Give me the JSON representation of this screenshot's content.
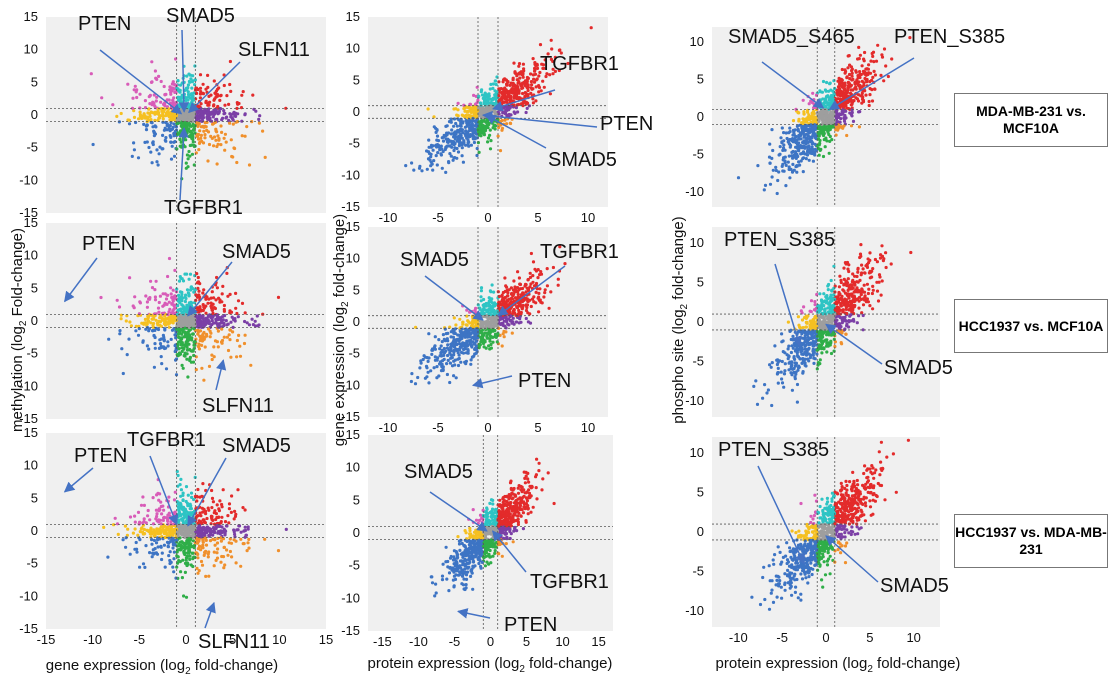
{
  "colors": {
    "background": "#f0f0f0",
    "grid": "#dcdcdc",
    "guide": "#555555",
    "arrow": "#4472c4",
    "up_up": "#e32b2b",
    "up_mid": "#2ec4c4",
    "up_down": "#d85cb8",
    "mid_up": "#7b3fa6",
    "mid_mid": "#9e9e9e",
    "mid_down": "#f5c021",
    "down_up": "#f0902c",
    "down_mid": "#2fae48",
    "down_down": "#3d74c4"
  },
  "comparisons": [
    "MDA-MB-231 vs. MCF10A",
    "HCC1937 vs. MCF10A",
    "HCC1937 vs. MDA-MB-231"
  ],
  "columns": [
    {
      "id": "methylation_vs_gene_expression",
      "xlabel": "gene expression (log2 fold-change)",
      "ylabel": "methylation (log2 Fold-change)",
      "xticks": [
        "-15",
        "-10",
        "-5",
        "0",
        "5",
        "10",
        "15"
      ],
      "yticks": [
        "-15",
        "-10",
        "-5",
        "0",
        "5",
        "10",
        "15"
      ],
      "rows_annotations": [
        [
          "PTEN",
          "SMAD5",
          "SLFN11",
          "TGFBR1"
        ],
        [
          "PTEN",
          "SMAD5",
          "SLFN11"
        ],
        [
          "PTEN",
          "TGFBR1",
          "SMAD5",
          "SLFN11"
        ]
      ]
    },
    {
      "id": "gene_vs_protein_expression",
      "xlabel": "protein expression (log2 fold-change)",
      "ylabel": "gene expression (log2 fold-change)",
      "xticks_rows_1_2": [
        "-10",
        "-5",
        "0",
        "5",
        "10"
      ],
      "xticks_row_3": [
        "-15",
        "-10",
        "-5",
        "0",
        "5",
        "10",
        "15"
      ],
      "yticks": [
        "-15",
        "-10",
        "-5",
        "0",
        "5",
        "10",
        "15"
      ],
      "rows_annotations": [
        [
          "TGFBR1",
          "PTEN",
          "SMAD5"
        ],
        [
          "SMAD5",
          "TGFBR1",
          "PTEN"
        ],
        [
          "SMAD5",
          "TGFBR1",
          "PTEN"
        ]
      ]
    },
    {
      "id": "phosphosite_vs_protein_expression",
      "xlabel": "protein expression (log2 fold-change)",
      "ylabel": "phospho site (log2 fold-change)",
      "xticks": [
        "-10",
        "-5",
        "0",
        "5",
        "10"
      ],
      "yticks": [
        "-10",
        "-5",
        "0",
        "5",
        "10"
      ],
      "rows_annotations": [
        [
          "SMAD5_S465",
          "PTEN_S385"
        ],
        [
          "PTEN_S385",
          "SMAD5"
        ],
        [
          "PTEN_S385",
          "SMAD5"
        ]
      ]
    }
  ],
  "chart_data": [
    {
      "type": "scatter",
      "panel": "col1-row1",
      "comparison": "MDA-MB-231 vs. MCF10A",
      "xlabel": "gene expression (log2 fold-change)",
      "ylabel": "methylation (log2 Fold-change)",
      "xlim": [
        -15,
        15
      ],
      "ylim": [
        -15,
        15
      ],
      "thresholds": [
        -1,
        1
      ],
      "annotations": [
        {
          "label": "PTEN",
          "x": -0.5,
          "y": 0.2
        },
        {
          "label": "SMAD5",
          "x": -0.2,
          "y": 0.5
        },
        {
          "label": "SLFN11",
          "x": 0.3,
          "y": 0.4
        },
        {
          "label": "TGFBR1",
          "x": -0.2,
          "y": -2
        }
      ]
    },
    {
      "type": "scatter",
      "panel": "col1-row2",
      "comparison": "HCC1937 vs. MCF10A",
      "xlabel": "gene expression (log2 fold-change)",
      "ylabel": "methylation (log2 Fold-change)",
      "xlim": [
        -15,
        15
      ],
      "ylim": [
        -15,
        15
      ],
      "thresholds": [
        -1,
        1
      ],
      "annotations": [
        {
          "label": "PTEN",
          "x": -13,
          "y": 3
        },
        {
          "label": "SMAD5",
          "x": 0.2,
          "y": 0.8
        },
        {
          "label": "SLFN11",
          "x": 4,
          "y": -6
        }
      ]
    },
    {
      "type": "scatter",
      "panel": "col1-row3",
      "comparison": "HCC1937 vs. MDA-MB-231",
      "xlabel": "gene expression (log2 fold-change)",
      "ylabel": "methylation (log2 Fold-change)",
      "xlim": [
        -15,
        15
      ],
      "ylim": [
        -15,
        15
      ],
      "thresholds": [
        -1,
        1
      ],
      "annotations": [
        {
          "label": "PTEN",
          "x": -13,
          "y": 6
        },
        {
          "label": "TGFBR1",
          "x": -1,
          "y": 1
        },
        {
          "label": "SMAD5",
          "x": 0.2,
          "y": 0.8
        },
        {
          "label": "SLFN11",
          "x": 3,
          "y": -11
        }
      ]
    },
    {
      "type": "scatter",
      "panel": "col2-row1",
      "comparison": "MDA-MB-231 vs. MCF10A",
      "xlabel": "protein expression (log2 fold-change)",
      "ylabel": "gene expression (log2 fold-change)",
      "xlim": [
        -12,
        12
      ],
      "ylim": [
        -15,
        15
      ],
      "thresholds": [
        -1,
        1
      ],
      "annotations": [
        {
          "label": "TGFBR1",
          "x": 0.5,
          "y": 0.5
        },
        {
          "label": "PTEN",
          "x": -0.5,
          "y": -0.5
        },
        {
          "label": "SMAD5",
          "x": -0.2,
          "y": -0.5
        }
      ]
    },
    {
      "type": "scatter",
      "panel": "col2-row2",
      "comparison": "HCC1937 vs. MCF10A",
      "xlabel": "protein expression (log2 fold-change)",
      "ylabel": "gene expression (log2 fold-change)",
      "xlim": [
        -12,
        12
      ],
      "ylim": [
        -15,
        15
      ],
      "thresholds": [
        -1,
        1
      ],
      "annotations": [
        {
          "label": "SMAD5",
          "x": -0.5,
          "y": 0.3
        },
        {
          "label": "TGFBR1",
          "x": 1,
          "y": 1
        },
        {
          "label": "PTEN",
          "x": -1.5,
          "y": -10
        }
      ]
    },
    {
      "type": "scatter",
      "panel": "col2-row3",
      "comparison": "HCC1937 vs. MDA-MB-231",
      "xlabel": "protein expression (log2 fold-change)",
      "ylabel": "gene expression (log2 fold-change)",
      "xlim": [
        -17,
        17
      ],
      "ylim": [
        -15,
        15
      ],
      "thresholds": [
        -1,
        1
      ],
      "annotations": [
        {
          "label": "SMAD5",
          "x": -0.5,
          "y": 0.3
        },
        {
          "label": "TGFBR1",
          "x": 0.3,
          "y": 0.3
        },
        {
          "label": "PTEN",
          "x": -4.5,
          "y": -12
        }
      ]
    },
    {
      "type": "scatter",
      "panel": "col3-row1",
      "comparison": "MDA-MB-231 vs. MCF10A",
      "xlabel": "protein expression (log2 fold-change)",
      "ylabel": "phospho site (log2 fold-change)",
      "xlim": [
        -13,
        13
      ],
      "ylim": [
        -12,
        12
      ],
      "thresholds": [
        -1,
        1
      ],
      "annotations": [
        {
          "label": "SMAD5_S465",
          "x": -0.3,
          "y": 1.2
        },
        {
          "label": "PTEN_S385",
          "x": 0.4,
          "y": 1
        }
      ]
    },
    {
      "type": "scatter",
      "panel": "col3-row2",
      "comparison": "HCC1937 vs. MCF10A",
      "xlabel": "protein expression (log2 fold-change)",
      "ylabel": "phospho site (log2 fold-change)",
      "xlim": [
        -13,
        13
      ],
      "ylim": [
        -12,
        12
      ],
      "thresholds": [
        -1,
        1
      ],
      "annotations": [
        {
          "label": "PTEN_S385",
          "x": -3,
          "y": -3
        },
        {
          "label": "SMAD5",
          "x": 0,
          "y": -0.3
        }
      ]
    },
    {
      "type": "scatter",
      "panel": "col3-row3",
      "comparison": "HCC1937 vs. MDA-MB-231",
      "xlabel": "protein expression (log2 fold-change)",
      "ylabel": "phospho site (log2 fold-change)",
      "xlim": [
        -13,
        13
      ],
      "ylim": [
        -12,
        12
      ],
      "thresholds": [
        -1,
        1
      ],
      "annotations": [
        {
          "label": "PTEN_S385",
          "x": -2.5,
          "y": -4
        },
        {
          "label": "SMAD5",
          "x": 0,
          "y": -0.5
        }
      ]
    }
  ]
}
